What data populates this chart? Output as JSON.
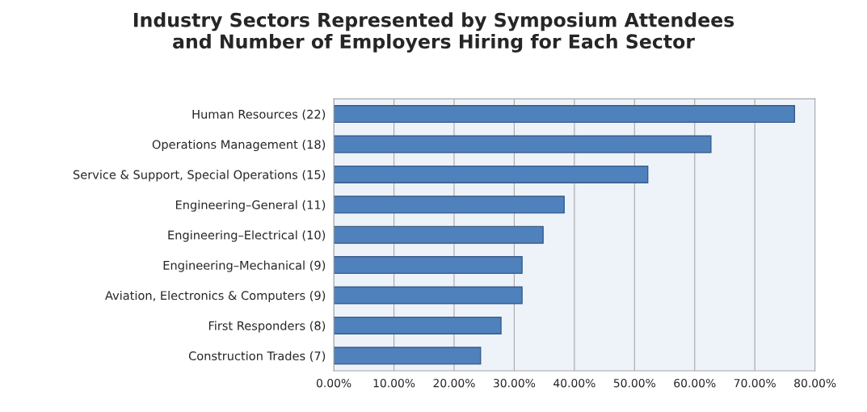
{
  "chart_data": {
    "type": "bar",
    "orientation": "horizontal",
    "title": "Industry Sectors Represented by Symposium Attendees\nand Number of Employers Hiring for Each Sector",
    "categories": [
      "Human Resources (22)",
      "Operations Management (18)",
      "Service & Support, Special Operations (15)",
      "Engineering–General (11)",
      "Engineering–Electrical (10)",
      "Engineering–Mechanical (9)",
      "Aviation, Electronics & Computers (9)",
      "First Responders (8)",
      "Construction Trades (7)"
    ],
    "values": [
      76.6,
      62.7,
      52.2,
      38.3,
      34.8,
      31.3,
      31.3,
      27.8,
      24.4
    ],
    "color": "#4f81bd",
    "xlim": [
      0,
      80
    ],
    "xticks": [
      {
        "value": 0,
        "label": "0.00%"
      },
      {
        "value": 10,
        "label": "10.00%"
      },
      {
        "value": 20,
        "label": "20.00%"
      },
      {
        "value": 30,
        "label": "30.00%"
      },
      {
        "value": 40,
        "label": "40.00%"
      },
      {
        "value": 50,
        "label": "50.00%"
      },
      {
        "value": 60,
        "label": "60.00%"
      },
      {
        "value": 70,
        "label": "70.00%"
      },
      {
        "value": 80,
        "label": "80.00%"
      }
    ],
    "grid": "x",
    "legend": false
  }
}
